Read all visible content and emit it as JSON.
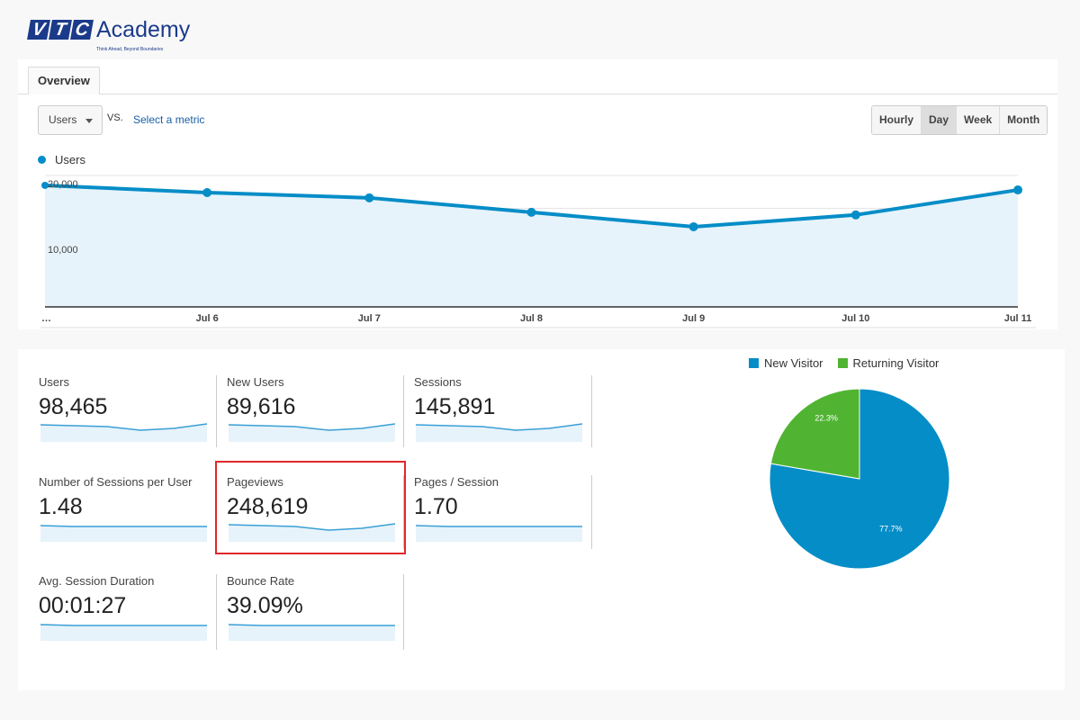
{
  "logo": {
    "letters": [
      "V",
      "T",
      "C"
    ],
    "word": "Academy",
    "tagline": "Think Ahead, Beyond Boundaries"
  },
  "tabs": [
    {
      "label": "Overview",
      "active": true
    }
  ],
  "toolbar": {
    "metric_select": "Users",
    "vs": "VS.",
    "select_metric": "Select a metric",
    "granularity": [
      {
        "label": "Hourly"
      },
      {
        "label": "Day",
        "active": true
      },
      {
        "label": "Week"
      },
      {
        "label": "Month"
      }
    ]
  },
  "chart_data": [
    {
      "type": "area",
      "legend": [
        "Users"
      ],
      "color": "#058dc7",
      "fill": "#e6f3fa",
      "x": [
        "…",
        "Jul 6",
        "Jul 7",
        "Jul 8",
        "Jul 9",
        "Jul 10",
        "Jul 11"
      ],
      "series": [
        {
          "name": "Users",
          "values": [
            18500,
            17400,
            16600,
            14400,
            12200,
            14000,
            17800
          ]
        }
      ],
      "yticks": [
        "10,000",
        "20,000"
      ],
      "ytick_values": [
        10000,
        20000
      ],
      "ylim": [
        0,
        20000
      ],
      "grid": true
    },
    {
      "type": "pie",
      "labels": [
        "New Visitor",
        "Returning Visitor"
      ],
      "values": [
        77.7,
        22.3
      ],
      "data_labels": [
        "77.7%",
        "22.3%"
      ],
      "colors": [
        "#058dc7",
        "#50b432"
      ],
      "legend": "top"
    }
  ],
  "metrics": [
    {
      "label": "Users",
      "value": "98,465"
    },
    {
      "label": "New Users",
      "value": "89,616"
    },
    {
      "label": "Sessions",
      "value": "145,891"
    },
    {
      "label": "Number of Sessions per User",
      "value": "1.48"
    },
    {
      "label": "Pageviews",
      "value": "248,619",
      "highlighted": true
    },
    {
      "label": "Pages / Session",
      "value": "1.70"
    },
    {
      "label": "Avg. Session Duration",
      "value": "00:01:27"
    },
    {
      "label": "Bounce Rate",
      "value": "39.09%"
    }
  ],
  "colors": {
    "accent": "#058dc7",
    "highlight": "#e0282c"
  }
}
